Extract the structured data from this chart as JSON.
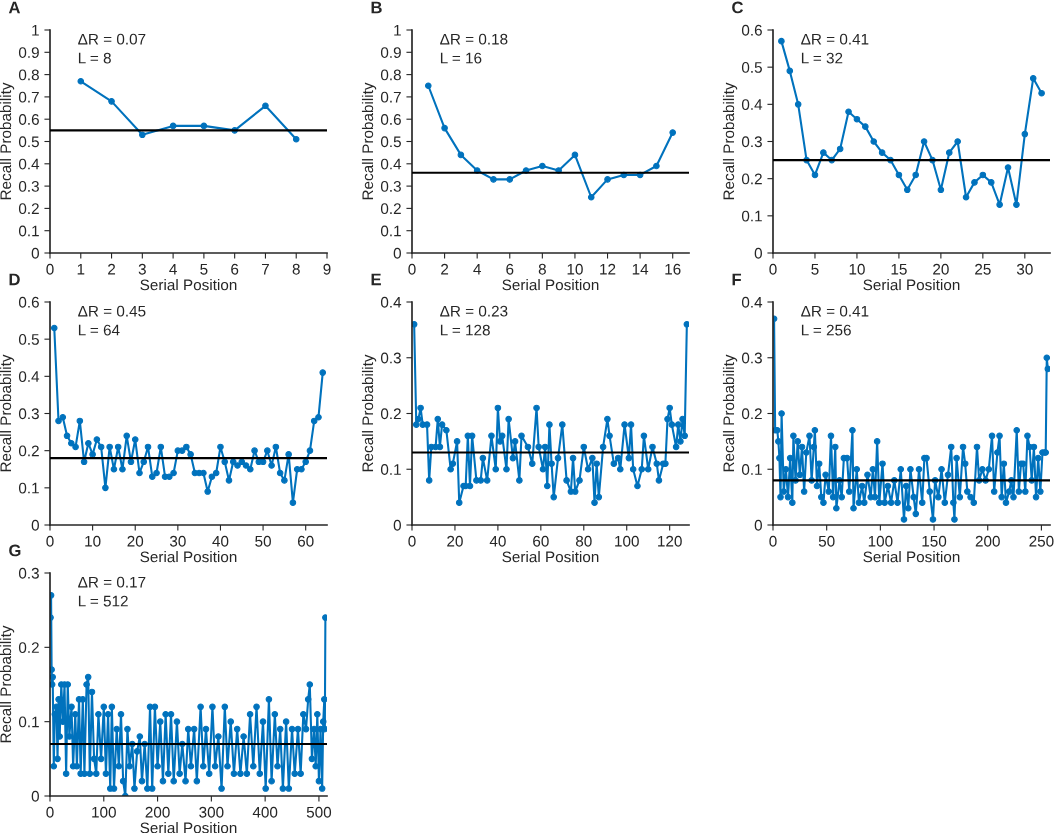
{
  "chart_data": [
    {
      "type": "line",
      "title": "A",
      "xlabel": "Serial Position",
      "ylabel": "Recall Probability",
      "annotations": [
        "ΔR = 0.07",
        "L = 8"
      ],
      "marker": "circle",
      "xlim": [
        0,
        9
      ],
      "xticks": [
        0,
        1,
        2,
        3,
        4,
        5,
        6,
        7,
        8,
        9
      ],
      "ylim": [
        0,
        1
      ],
      "yticks": [
        0,
        0.1,
        0.2,
        0.3,
        0.4,
        0.5,
        0.6,
        0.7,
        0.8,
        0.9,
        1
      ],
      "ref_lines": [
        {
          "axis": "y",
          "value": 0.55,
          "color": "#000000"
        }
      ],
      "series": [
        {
          "color": "#0072bd",
          "x": [
            1,
            2,
            3,
            4,
            5,
            6,
            7,
            8
          ],
          "values": [
            0.77,
            0.68,
            0.53,
            0.57,
            0.57,
            0.55,
            0.66,
            0.51
          ]
        }
      ]
    },
    {
      "type": "line",
      "title": "B",
      "xlabel": "Serial Position",
      "ylabel": "Recall Probability",
      "annotations": [
        "ΔR = 0.18",
        "L = 16"
      ],
      "marker": "circle",
      "xlim": [
        0,
        17
      ],
      "xticks": [
        0,
        2,
        4,
        6,
        8,
        10,
        12,
        14,
        16
      ],
      "ylim": [
        0,
        1
      ],
      "yticks": [
        0,
        0.1,
        0.2,
        0.3,
        0.4,
        0.5,
        0.6,
        0.7,
        0.8,
        0.9,
        1
      ],
      "ref_lines": [
        {
          "axis": "y",
          "value": 0.36,
          "color": "#000000"
        }
      ],
      "series": [
        {
          "color": "#0072bd",
          "x": [
            1,
            2,
            3,
            4,
            5,
            6,
            7,
            8,
            9,
            10,
            11,
            12,
            13,
            14,
            15,
            16
          ],
          "values": [
            0.75,
            0.56,
            0.44,
            0.37,
            0.33,
            0.33,
            0.37,
            0.39,
            0.37,
            0.44,
            0.25,
            0.33,
            0.35,
            0.35,
            0.39,
            0.54
          ]
        }
      ]
    },
    {
      "type": "line",
      "title": "C",
      "xlabel": "Serial Position",
      "ylabel": "Recall Probability",
      "annotations": [
        "ΔR = 0.41",
        "L = 32"
      ],
      "marker": "circle",
      "xlim": [
        0,
        33
      ],
      "xticks": [
        0,
        5,
        10,
        15,
        20,
        25,
        30
      ],
      "ylim": [
        0,
        0.6
      ],
      "yticks": [
        0,
        0.1,
        0.2,
        0.3,
        0.4,
        0.5,
        0.6
      ],
      "ref_lines": [
        {
          "axis": "y",
          "value": 0.25,
          "color": "#000000"
        }
      ],
      "series": [
        {
          "color": "#0072bd",
          "x": [
            1,
            2,
            3,
            4,
            5,
            6,
            7,
            8,
            9,
            10,
            11,
            12,
            13,
            14,
            15,
            16,
            17,
            18,
            19,
            20,
            21,
            22,
            23,
            24,
            25,
            26,
            27,
            28,
            29,
            30,
            31,
            32
          ],
          "values": [
            0.57,
            0.49,
            0.4,
            0.25,
            0.21,
            0.27,
            0.25,
            0.28,
            0.38,
            0.36,
            0.34,
            0.3,
            0.27,
            0.25,
            0.21,
            0.17,
            0.21,
            0.3,
            0.25,
            0.17,
            0.27,
            0.3,
            0.15,
            0.19,
            0.21,
            0.19,
            0.13,
            0.23,
            0.13,
            0.32,
            0.47,
            0.43
          ]
        }
      ]
    },
    {
      "type": "line",
      "title": "D",
      "xlabel": "Serial Position",
      "ylabel": "Recall Probability",
      "annotations": [
        "ΔR = 0.45",
        "L = 64"
      ],
      "marker": "circle",
      "xlim": [
        0,
        65
      ],
      "xticks": [
        0,
        10,
        20,
        30,
        40,
        50,
        60
      ],
      "ylim": [
        0,
        0.6
      ],
      "yticks": [
        0,
        0.1,
        0.2,
        0.3,
        0.4,
        0.5,
        0.6
      ],
      "ref_lines": [
        {
          "axis": "y",
          "value": 0.18,
          "color": "#000000"
        }
      ],
      "series": [
        {
          "color": "#0072bd",
          "x": [
            1,
            2,
            3,
            4,
            5,
            6,
            7,
            8,
            9,
            10,
            11,
            12,
            13,
            14,
            15,
            16,
            17,
            18,
            19,
            20,
            21,
            22,
            23,
            24,
            25,
            26,
            27,
            28,
            29,
            30,
            31,
            32,
            33,
            34,
            35,
            36,
            37,
            38,
            39,
            40,
            41,
            42,
            43,
            44,
            45,
            46,
            47,
            48,
            49,
            50,
            51,
            52,
            53,
            54,
            55,
            56,
            57,
            58,
            59,
            60,
            61,
            62,
            63,
            64
          ],
          "values": [
            0.53,
            0.28,
            0.29,
            0.24,
            0.22,
            0.21,
            0.28,
            0.17,
            0.22,
            0.19,
            0.23,
            0.21,
            0.1,
            0.21,
            0.15,
            0.21,
            0.15,
            0.24,
            0.17,
            0.23,
            0.14,
            0.17,
            0.21,
            0.13,
            0.14,
            0.21,
            0.13,
            0.13,
            0.14,
            0.2,
            0.2,
            0.21,
            0.19,
            0.14,
            0.14,
            0.14,
            0.09,
            0.13,
            0.14,
            0.21,
            0.17,
            0.12,
            0.17,
            0.16,
            0.17,
            0.16,
            0.15,
            0.2,
            0.17,
            0.17,
            0.2,
            0.16,
            0.21,
            0.14,
            0.12,
            0.19,
            0.06,
            0.15,
            0.15,
            0.17,
            0.2,
            0.28,
            0.29,
            0.41
          ]
        }
      ]
    },
    {
      "type": "line",
      "title": "E",
      "xlabel": "Serial Position",
      "ylabel": "Recall Probability",
      "annotations": [
        "ΔR = 0.23",
        "L = 128"
      ],
      "marker": "circle",
      "xlim": [
        0,
        129
      ],
      "xticks": [
        0,
        20,
        40,
        60,
        80,
        100,
        120
      ],
      "ylim": [
        0,
        0.4
      ],
      "yticks": [
        0,
        0.1,
        0.2,
        0.3,
        0.4
      ],
      "ref_lines": [
        {
          "axis": "y",
          "value": 0.13,
          "color": "#000000"
        }
      ],
      "series": [
        {
          "color": "#0072bd",
          "x": [
            1,
            2,
            3,
            4,
            5,
            7,
            8,
            9,
            11,
            12,
            13,
            14,
            16,
            18,
            19,
            21,
            22,
            24,
            25,
            26,
            27,
            28,
            30,
            32,
            33,
            35,
            37,
            39,
            40,
            41,
            42,
            44,
            45,
            47,
            48,
            50,
            51,
            54,
            56,
            58,
            59,
            61,
            62,
            63,
            64,
            65,
            66,
            68,
            70,
            72,
            74,
            75,
            76,
            78,
            80,
            82,
            84,
            85,
            86,
            87,
            89,
            91,
            92,
            94,
            96,
            97,
            99,
            101,
            102,
            103,
            105,
            107,
            108,
            110,
            112,
            114,
            115,
            117,
            118,
            119,
            120,
            121,
            123,
            124,
            125,
            126,
            127,
            128
          ],
          "values": [
            0.36,
            0.18,
            0.19,
            0.21,
            0.18,
            0.18,
            0.08,
            0.14,
            0.14,
            0.19,
            0.14,
            0.18,
            0.17,
            0.1,
            0.11,
            0.15,
            0.04,
            0.07,
            0.07,
            0.16,
            0.07,
            0.16,
            0.08,
            0.08,
            0.12,
            0.08,
            0.16,
            0.1,
            0.21,
            0.15,
            0.16,
            0.1,
            0.19,
            0.12,
            0.15,
            0.08,
            0.16,
            0.14,
            0.11,
            0.21,
            0.14,
            0.1,
            0.14,
            0.07,
            0.18,
            0.11,
            0.05,
            0.12,
            0.18,
            0.08,
            0.06,
            0.12,
            0.06,
            0.08,
            0.14,
            0.1,
            0.12,
            0.04,
            0.11,
            0.05,
            0.14,
            0.19,
            0.16,
            0.11,
            0.12,
            0.1,
            0.18,
            0.12,
            0.18,
            0.1,
            0.07,
            0.1,
            0.16,
            0.1,
            0.14,
            0.11,
            0.08,
            0.11,
            0.11,
            0.19,
            0.21,
            0.18,
            0.14,
            0.18,
            0.15,
            0.19,
            0.16,
            0.36
          ]
        }
      ]
    },
    {
      "type": "line",
      "title": "F",
      "xlabel": "Serial Position",
      "ylabel": "Recall Probability",
      "annotations": [
        "ΔR = 0.41",
        "L = 256"
      ],
      "marker": "circle",
      "xlim": [
        0,
        258
      ],
      "xticks": [
        0,
        50,
        100,
        150,
        200,
        250
      ],
      "ylim": [
        0,
        0.4
      ],
      "yticks": [
        0,
        0.1,
        0.2,
        0.3,
        0.4
      ],
      "ref_lines": [
        {
          "axis": "y",
          "value": 0.08,
          "color": "#000000"
        }
      ],
      "series": [
        {
          "color": "#0072bd",
          "x": [
            1,
            2,
            4,
            5,
            6,
            7,
            8,
            10,
            12,
            14,
            16,
            18,
            19,
            21,
            23,
            25,
            27,
            29,
            31,
            34,
            36,
            38,
            39,
            41,
            43,
            45,
            47,
            49,
            52,
            54,
            56,
            58,
            59,
            62,
            64,
            66,
            69,
            71,
            74,
            75,
            78,
            80,
            83,
            85,
            88,
            91,
            93,
            95,
            97,
            99,
            102,
            104,
            107,
            110,
            113,
            116,
            119,
            122,
            124,
            126,
            128,
            131,
            133,
            136,
            139,
            141,
            143,
            146,
            149,
            151,
            154,
            157,
            160,
            163,
            166,
            168,
            169,
            171,
            174,
            177,
            179,
            181,
            184,
            187,
            190,
            192,
            195,
            198,
            201,
            204,
            206,
            209,
            211,
            213,
            215,
            217,
            220,
            222,
            224,
            227,
            229,
            231,
            233,
            235,
            237,
            239,
            241,
            243,
            245,
            247,
            249,
            251,
            253,
            254,
            255,
            256
          ],
          "values": [
            0.37,
            0.17,
            0.17,
            0.15,
            0.12,
            0.05,
            0.2,
            0.06,
            0.1,
            0.05,
            0.12,
            0.04,
            0.16,
            0.08,
            0.15,
            0.09,
            0.14,
            0.06,
            0.13,
            0.16,
            0.08,
            0.14,
            0.17,
            0.07,
            0.11,
            0.05,
            0.04,
            0.09,
            0.06,
            0.16,
            0.05,
            0.14,
            0.03,
            0.08,
            0.05,
            0.12,
            0.12,
            0.06,
            0.17,
            0.03,
            0.1,
            0.04,
            0.07,
            0.04,
            0.09,
            0.05,
            0.1,
            0.05,
            0.15,
            0.04,
            0.11,
            0.04,
            0.07,
            0.04,
            0.08,
            0.04,
            0.1,
            0.01,
            0.07,
            0.03,
            0.1,
            0.05,
            0.02,
            0.1,
            0.04,
            0.12,
            0.12,
            0.06,
            0.01,
            0.08,
            0.05,
            0.1,
            0.04,
            0.09,
            0.14,
            0.04,
            0.01,
            0.12,
            0.05,
            0.14,
            0.11,
            0.06,
            0.05,
            0.04,
            0.14,
            0.08,
            0.1,
            0.08,
            0.1,
            0.16,
            0.06,
            0.13,
            0.16,
            0.05,
            0.11,
            0.04,
            0.06,
            0.08,
            0.05,
            0.17,
            0.06,
            0.11,
            0.11,
            0.06,
            0.16,
            0.14,
            0.08,
            0.14,
            0.05,
            0.12,
            0.06,
            0.13,
            0.13,
            0.13,
            0.3,
            0.28
          ]
        }
      ]
    },
    {
      "type": "line",
      "title": "G",
      "xlabel": "Serial Position",
      "ylabel": "Recall Probability",
      "annotations": [
        "ΔR = 0.17",
        "L = 512"
      ],
      "marker": "circle",
      "xlim": [
        0,
        515
      ],
      "xticks": [
        0,
        100,
        200,
        300,
        400,
        500
      ],
      "ylim": [
        0,
        0.3
      ],
      "yticks": [
        0,
        0.1,
        0.2,
        0.3
      ],
      "ref_lines": [
        {
          "axis": "y",
          "value": 0.07,
          "color": "#000000"
        }
      ],
      "series": [
        {
          "color": "#0072bd",
          "x": [
            1,
            2,
            3,
            4,
            5,
            7,
            9,
            12,
            14,
            16,
            18,
            21,
            24,
            27,
            30,
            33,
            36,
            40,
            43,
            47,
            50,
            54,
            57,
            61,
            64,
            68,
            71,
            74,
            78,
            82,
            86,
            90,
            95,
            100,
            104,
            108,
            112,
            115,
            119,
            124,
            128,
            132,
            136,
            140,
            144,
            148,
            153,
            157,
            162,
            167,
            171,
            176,
            181,
            186,
            190,
            195,
            200,
            205,
            210,
            215,
            220,
            225,
            230,
            236,
            241,
            246,
            252,
            257,
            262,
            268,
            273,
            280,
            285,
            290,
            296,
            302,
            307,
            313,
            319,
            325,
            330,
            336,
            342,
            348,
            354,
            360,
            366,
            372,
            378,
            384,
            390,
            396,
            401,
            407,
            412,
            418,
            423,
            428,
            433,
            439,
            444,
            450,
            455,
            461,
            466,
            471,
            476,
            480,
            483,
            487,
            491,
            494,
            497,
            500,
            503,
            506,
            508,
            510,
            511,
            512
          ],
          "values": [
            0.24,
            0.27,
            0.17,
            0.15,
            0.16,
            0.04,
            0.11,
            0.12,
            0.05,
            0.13,
            0.08,
            0.15,
            0.1,
            0.15,
            0.03,
            0.15,
            0.08,
            0.12,
            0.04,
            0.11,
            0.04,
            0.13,
            0.03,
            0.13,
            0.03,
            0.15,
            0.16,
            0.03,
            0.14,
            0.05,
            0.03,
            0.11,
            0.05,
            0.12,
            0.03,
            0.11,
            0.01,
            0.12,
            0.01,
            0.09,
            0.04,
            0.11,
            0.02,
            0.0,
            0.09,
            0.04,
            0.07,
            0.01,
            0.06,
            0.08,
            0.02,
            0.07,
            0.01,
            0.12,
            0.01,
            0.12,
            0.04,
            0.1,
            0.02,
            0.11,
            0.03,
            0.11,
            0.02,
            0.1,
            0.03,
            0.07,
            0.02,
            0.09,
            0.04,
            0.09,
            0.02,
            0.12,
            0.04,
            0.09,
            0.03,
            0.12,
            0.04,
            0.08,
            0.01,
            0.12,
            0.04,
            0.1,
            0.03,
            0.09,
            0.03,
            0.08,
            0.03,
            0.11,
            0.04,
            0.12,
            0.03,
            0.1,
            0.01,
            0.13,
            0.02,
            0.11,
            0.04,
            0.09,
            0.01,
            0.1,
            0.01,
            0.09,
            0.03,
            0.09,
            0.03,
            0.11,
            0.09,
            0.13,
            0.15,
            0.05,
            0.09,
            0.04,
            0.11,
            0.02,
            0.09,
            0.01,
            0.1,
            0.13,
            0.09,
            0.24
          ]
        }
      ]
    }
  ]
}
